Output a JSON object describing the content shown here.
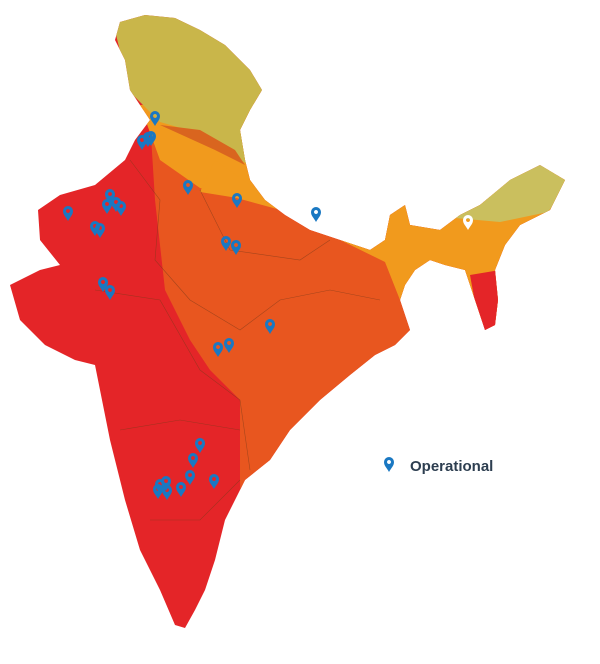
{
  "legend": {
    "label": "Operational"
  }
}
